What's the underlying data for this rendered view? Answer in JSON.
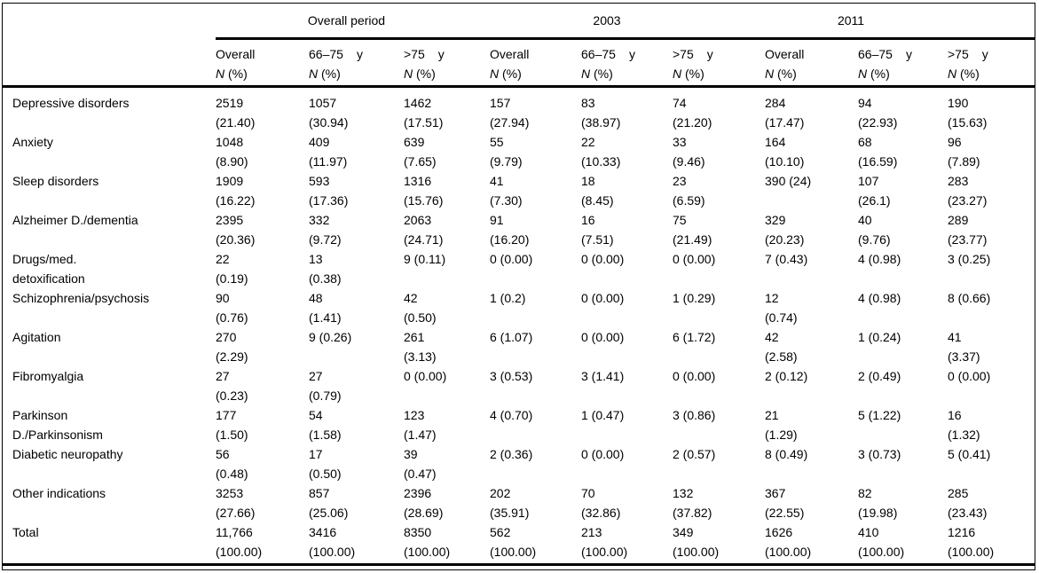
{
  "table": {
    "n_label": "N",
    "pct_label": "(%)",
    "groups": [
      {
        "label": "Overall period"
      },
      {
        "label": "2003"
      },
      {
        "label": "2011"
      }
    ],
    "columns": [
      {
        "title": "Overall",
        "unit": ""
      },
      {
        "title": "66–75",
        "unit": "y"
      },
      {
        "title": ">75",
        "unit": "y"
      },
      {
        "title": "Overall",
        "unit": ""
      },
      {
        "title": "66–75",
        "unit": "y"
      },
      {
        "title": ">75",
        "unit": "y"
      },
      {
        "title": "Overall",
        "unit": ""
      },
      {
        "title": "66–75",
        "unit": "y"
      },
      {
        "title": ">75",
        "unit": "y"
      }
    ],
    "rows": [
      {
        "label": "Depressive disorders",
        "cells": [
          "2519\n(21.40)",
          "1057\n(30.94)",
          "1462\n(17.51)",
          "157\n(27.94)",
          "83\n(38.97)",
          "74\n(21.20)",
          "284\n(17.47)",
          "94\n(22.93)",
          "190\n(15.63)"
        ]
      },
      {
        "label": "Anxiety",
        "cells": [
          "1048\n(8.90)",
          "409\n(11.97)",
          "639\n(7.65)",
          "55\n(9.79)",
          "22\n(10.33)",
          "33\n(9.46)",
          "164\n(10.10)",
          "68\n(16.59)",
          "96\n(7.89)"
        ]
      },
      {
        "label": "Sleep disorders",
        "cells": [
          "1909\n(16.22)",
          "593\n(17.36)",
          "1316\n(15.76)",
          "41\n(7.30)",
          "18\n(8.45)",
          "23\n(6.59)",
          "390 (24)",
          "107\n(26.1)",
          "283\n(23.27)"
        ]
      },
      {
        "label": "Alzheimer D./dementia",
        "cells": [
          "2395\n(20.36)",
          "332\n(9.72)",
          "2063\n(24.71)",
          "91\n(16.20)",
          "16\n(7.51)",
          "75\n(21.49)",
          "329\n(20.23)",
          "40\n(9.76)",
          "289\n(23.77)"
        ]
      },
      {
        "label": "Drugs/med.\ndetoxification",
        "cells": [
          "22\n(0.19)",
          "13\n(0.38)",
          "9 (0.11)",
          "0 (0.00)",
          "0 (0.00)",
          "0 (0.00)",
          "7 (0.43)",
          "4 (0.98)",
          "3 (0.25)"
        ]
      },
      {
        "label": "Schizophrenia/psychosis",
        "cells": [
          "90\n(0.76)",
          "48\n(1.41)",
          "42\n(0.50)",
          "1 (0.2)",
          "0 (0.00)",
          "1 (0.29)",
          "12\n(0.74)",
          "4 (0.98)",
          "8 (0.66)"
        ]
      },
      {
        "label": "Agitation",
        "cells": [
          "270\n(2.29)",
          "9 (0.26)",
          "261\n(3.13)",
          "6 (1.07)",
          "0 (0.00)",
          "6 (1.72)",
          "42\n(2.58)",
          "1 (0.24)",
          "41\n(3.37)"
        ]
      },
      {
        "label": "Fibromyalgia",
        "cells": [
          "27\n(0.23)",
          "27\n(0.79)",
          "0 (0.00)",
          "3 (0.53)",
          "3 (1.41)",
          "0 (0.00)",
          "2 (0.12)",
          "2 (0.49)",
          "0 (0.00)"
        ]
      },
      {
        "label": "Parkinson\nD./Parkinsonism",
        "cells": [
          "177\n(1.50)",
          "54\n(1.58)",
          "123\n(1.47)",
          "4 (0.70)",
          "1 (0.47)",
          "3 (0.86)",
          "21\n(1.29)",
          "5 (1.22)",
          "16\n(1.32)"
        ]
      },
      {
        "label": "Diabetic neuropathy",
        "cells": [
          "56\n(0.48)",
          "17\n(0.50)",
          "39\n(0.47)",
          "2 (0.36)",
          "0 (0.00)",
          "2 (0.57)",
          "8 (0.49)",
          "3 (0.73)",
          "5 (0.41)"
        ]
      },
      {
        "label": "Other indications",
        "cells": [
          "3253\n(27.66)",
          "857\n(25.06)",
          "2396\n(28.69)",
          "202\n(35.91)",
          "70\n(32.86)",
          "132\n(37.82)",
          "367\n(22.55)",
          "82\n(19.98)",
          "285\n(23.43)"
        ]
      },
      {
        "label": "Total",
        "cells": [
          "11,766\n(100.00)",
          "3416\n(100.00)",
          "8350\n(100.00)",
          "562\n(100.00)",
          "213\n(100.00)",
          "349\n(100.00)",
          "1626\n(100.00)",
          "410\n(100.00)",
          "1216\n(100.00)"
        ]
      }
    ]
  }
}
